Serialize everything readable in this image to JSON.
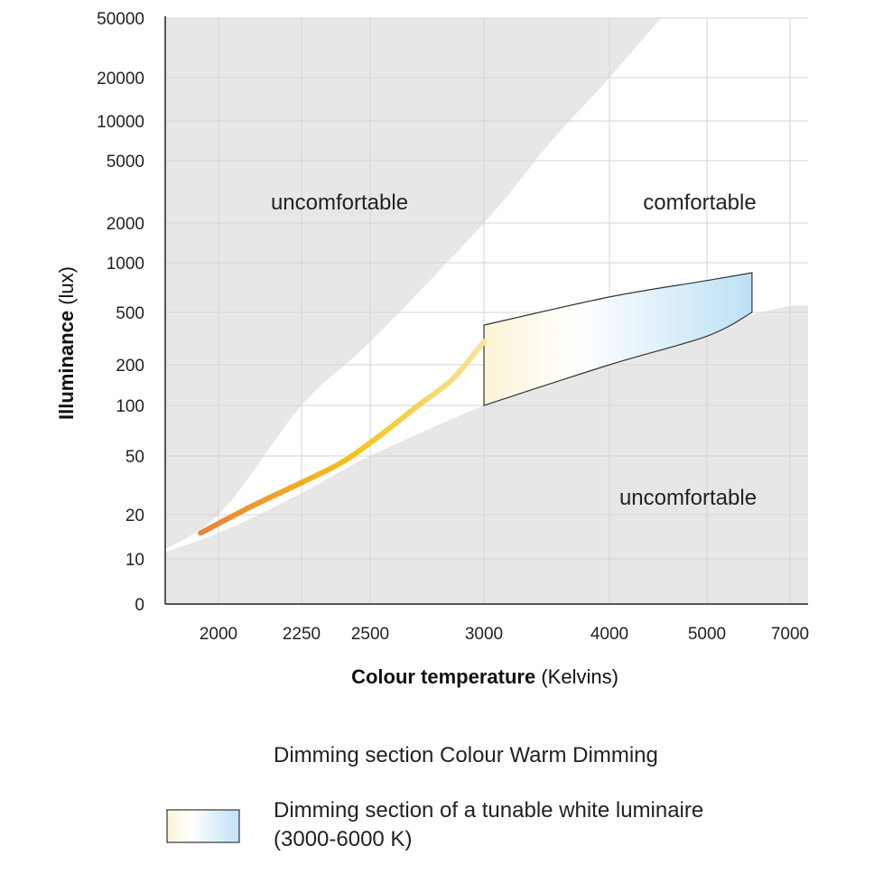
{
  "chart_data": {
    "type": "area",
    "xlabel_bold": "Colour temperature",
    "xlabel_rest": "(Kelvins)",
    "ylabel_bold": "Illuminance",
    "ylabel_rest": "(lux)",
    "x_ticks": [
      2000,
      2250,
      2500,
      3000,
      4000,
      5000,
      7000
    ],
    "x_tick_labels": [
      "2000",
      "2250",
      "2500",
      "3000",
      "4000",
      "5000",
      "7000"
    ],
    "y_ticks": [
      0,
      10,
      20,
      50,
      100,
      200,
      500,
      1000,
      2000,
      5000,
      10000,
      20000,
      50000
    ],
    "y_tick_labels": [
      "0",
      "10",
      "20",
      "50",
      "100",
      "200",
      "500",
      "1000",
      "2000",
      "5000",
      "10000",
      "20000",
      "50000"
    ],
    "xlim": [
      1800,
      7000
    ],
    "ylim": [
      0,
      50000
    ],
    "grid": true,
    "regions": [
      {
        "label": "uncomfortable",
        "position": "upper-left"
      },
      {
        "label": "comfortable",
        "position": "upper-right"
      },
      {
        "label": "uncomfortable",
        "position": "lower-right"
      }
    ],
    "comfort_upper_boundary": {
      "x": [
        1800,
        2000,
        2250,
        2500,
        3000,
        3500,
        4000,
        4500
      ],
      "y": [
        10,
        20,
        100,
        300,
        2000,
        7000,
        20000,
        50000
      ]
    },
    "comfort_lower_boundary": {
      "x": [
        1800,
        2000,
        2250,
        2500,
        3000,
        4000,
        5000,
        6000,
        7000
      ],
      "y": [
        10,
        15,
        28,
        50,
        100,
        230,
        380,
        480,
        550
      ]
    },
    "series": [
      {
        "name": "Dimming section Colour Warm Dimming",
        "x": [
          1950,
          2100,
          2250,
          2400,
          2550,
          2700,
          2850,
          3000
        ],
        "y": [
          15,
          23,
          33,
          46,
          68,
          100,
          155,
          300
        ],
        "colors": [
          "#e8823a",
          "#f5c518",
          "#f7e4a0"
        ]
      },
      {
        "name": "Dimming section of a tunable white luminaire",
        "name_line2": "(3000-6000 K)",
        "x": [
          3000,
          4000,
          5000,
          6000
        ],
        "y_upper": [
          400,
          620,
          780,
          870
        ],
        "y_lower": [
          100,
          200,
          330,
          500
        ],
        "colors": [
          "#fbf4d6",
          "#ffffff",
          "#bde0f5"
        ]
      }
    ]
  }
}
